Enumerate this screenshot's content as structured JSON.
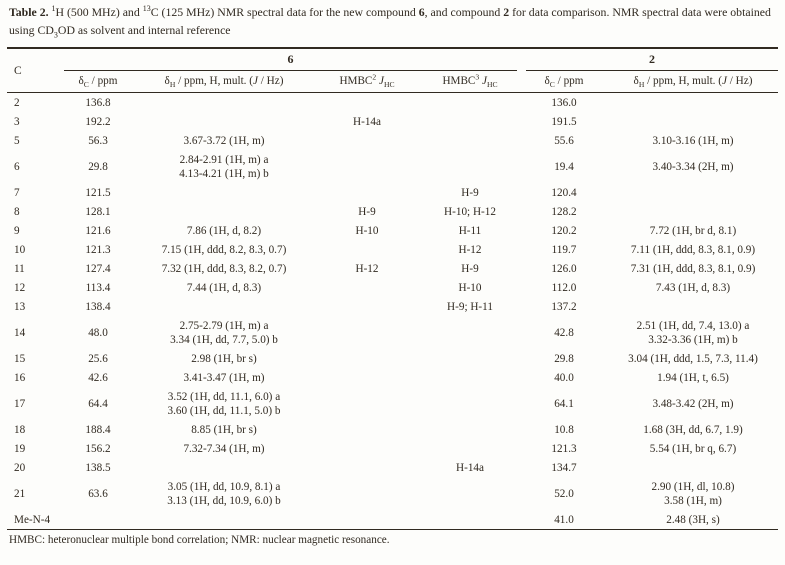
{
  "title": {
    "rich": "**Table 2.** ^1^H (500 MHz) and ^13^C (125 MHz) NMR spectral data for the new compound **6**, and compound **2** for data comparison. NMR spectral data were obtained using CD~3~OD as solvent and internal reference"
  },
  "table": {
    "corner_header": "C",
    "groups": [
      {
        "label": "6"
      },
      {
        "label": "2"
      }
    ],
    "subheaders": {
      "dc6": "δ~C~ / ppm",
      "dh6": "δ~H~ / ppm, H, mult. (*J* / Hz)",
      "hmbc2": "HMBC^2^ *J*~HC~",
      "hmbc3": "HMBC^3^ *J*~HC~",
      "dc2": "δ~C~ / ppm",
      "dh2": "δ~H~ / ppm, H, mult. (*J* / Hz)"
    },
    "rows": [
      {
        "c": "2",
        "c6_dc": "136.8",
        "c6_dh": [],
        "hmbc2": "",
        "hmbc3": "",
        "c2_dc": "136.0",
        "c2_dh": []
      },
      {
        "c": "3",
        "c6_dc": "192.2",
        "c6_dh": [],
        "hmbc2": "H-14a",
        "hmbc3": "",
        "c2_dc": "191.5",
        "c2_dh": []
      },
      {
        "c": "5",
        "c6_dc": "56.3",
        "c6_dh": [
          "3.67-3.72 (1H, m)"
        ],
        "hmbc2": "",
        "hmbc3": "",
        "c2_dc": "55.6",
        "c2_dh": [
          "3.10-3.16 (1H, m)"
        ]
      },
      {
        "c": "6",
        "c6_dc": "29.8",
        "c6_dh": [
          "2.84-2.91 (1H, m) a",
          "4.13-4.21 (1H, m) b"
        ],
        "hmbc2": "",
        "hmbc3": "",
        "c2_dc": "19.4",
        "c2_dh": [
          "3.40-3.34 (2H, m)"
        ]
      },
      {
        "c": "7",
        "c6_dc": "121.5",
        "c6_dh": [],
        "hmbc2": "",
        "hmbc3": "H-9",
        "c2_dc": "120.4",
        "c2_dh": []
      },
      {
        "c": "8",
        "c6_dc": "128.1",
        "c6_dh": [],
        "hmbc2": "H-9",
        "hmbc3": "H-10; H-12",
        "c2_dc": "128.2",
        "c2_dh": []
      },
      {
        "c": "9",
        "c6_dc": "121.6",
        "c6_dh": [
          "7.86 (1H, d, 8.2)"
        ],
        "hmbc2": "H-10",
        "hmbc3": "H-11",
        "c2_dc": "120.2",
        "c2_dh": [
          "7.72 (1H, br d, 8.1)"
        ]
      },
      {
        "c": "10",
        "c6_dc": "121.3",
        "c6_dh": [
          "7.15 (1H, ddd, 8.2, 8.3, 0.7)"
        ],
        "hmbc2": "",
        "hmbc3": "H-12",
        "c2_dc": "119.7",
        "c2_dh": [
          "7.11 (1H, ddd, 8.3, 8.1, 0.9)"
        ]
      },
      {
        "c": "11",
        "c6_dc": "127.4",
        "c6_dh": [
          "7.32 (1H, ddd, 8.3, 8.2, 0.7)"
        ],
        "hmbc2": "H-12",
        "hmbc3": "H-9",
        "c2_dc": "126.0",
        "c2_dh": [
          "7.31 (1H, ddd, 8.3, 8.1, 0.9)"
        ]
      },
      {
        "c": "12",
        "c6_dc": "113.4",
        "c6_dh": [
          "7.44 (1H, d, 8.3)"
        ],
        "hmbc2": "",
        "hmbc3": "H-10",
        "c2_dc": "112.0",
        "c2_dh": [
          "7.43 (1H, d, 8.3)"
        ]
      },
      {
        "c": "13",
        "c6_dc": "138.4",
        "c6_dh": [],
        "hmbc2": "",
        "hmbc3": "H-9; H-11",
        "c2_dc": "137.2",
        "c2_dh": []
      },
      {
        "c": "14",
        "c6_dc": "48.0",
        "c6_dh": [
          "2.75-2.79 (1H, m) a",
          "3.34 (1H, dd, 7.7, 5.0) b"
        ],
        "hmbc2": "",
        "hmbc3": "",
        "c2_dc": "42.8",
        "c2_dh": [
          "2.51 (1H, dd, 7.4, 13.0) a",
          "3.32-3.36 (1H, m) b"
        ]
      },
      {
        "c": "15",
        "c6_dc": "25.6",
        "c6_dh": [
          "2.98 (1H, br s)"
        ],
        "hmbc2": "",
        "hmbc3": "",
        "c2_dc": "29.8",
        "c2_dh": [
          "3.04 (1H, ddd, 1.5, 7.3, 11.4)"
        ]
      },
      {
        "c": "16",
        "c6_dc": "42.6",
        "c6_dh": [
          "3.41-3.47 (1H, m)"
        ],
        "hmbc2": "",
        "hmbc3": "",
        "c2_dc": "40.0",
        "c2_dh": [
          "1.94 (1H, t, 6.5)"
        ]
      },
      {
        "c": "17",
        "c6_dc": "64.4",
        "c6_dh": [
          "3.52 (1H, dd, 11.1, 6.0) a",
          "3.60 (1H, dd, 11.1, 5.0) b"
        ],
        "hmbc2": "",
        "hmbc3": "",
        "c2_dc": "64.1",
        "c2_dh": [
          "3.48-3.42 (2H, m)"
        ]
      },
      {
        "c": "18",
        "c6_dc": "188.4",
        "c6_dh": [
          "8.85 (1H, br s)"
        ],
        "hmbc2": "",
        "hmbc3": "",
        "c2_dc": "10.8",
        "c2_dh": [
          "1.68 (3H, dd, 6.7, 1.9)"
        ]
      },
      {
        "c": "19",
        "c6_dc": "156.2",
        "c6_dh": [
          "7.32-7.34 (1H, m)"
        ],
        "hmbc2": "",
        "hmbc3": "",
        "c2_dc": "121.3",
        "c2_dh": [
          "5.54 (1H, br q, 6.7)"
        ]
      },
      {
        "c": "20",
        "c6_dc": "138.5",
        "c6_dh": [],
        "hmbc2": "",
        "hmbc3": "H-14a",
        "c2_dc": "134.7",
        "c2_dh": []
      },
      {
        "c": "21",
        "c6_dc": "63.6",
        "c6_dh": [
          "3.05 (1H, dd, 10.9, 8.1) a",
          "3.13 (1H, dd, 10.9, 6.0) b"
        ],
        "hmbc2": "",
        "hmbc3": "",
        "c2_dc": "52.0",
        "c2_dh": [
          "2.90 (1H, dl, 10.8)",
          "3.58 (1H, m)"
        ]
      },
      {
        "c": "Me-N-4",
        "c6_dc": "",
        "c6_dh": [],
        "hmbc2": "",
        "hmbc3": "",
        "c2_dc": "41.0",
        "c2_dh": [
          "2.48 (3H, s)"
        ]
      }
    ]
  },
  "footnote": "HMBC: heteronuclear multiple bond correlation; NMR: nuclear magnetic resonance.",
  "colors": {
    "text": "#312a21",
    "background": "#fdfdfb",
    "rule": "#312a21"
  }
}
